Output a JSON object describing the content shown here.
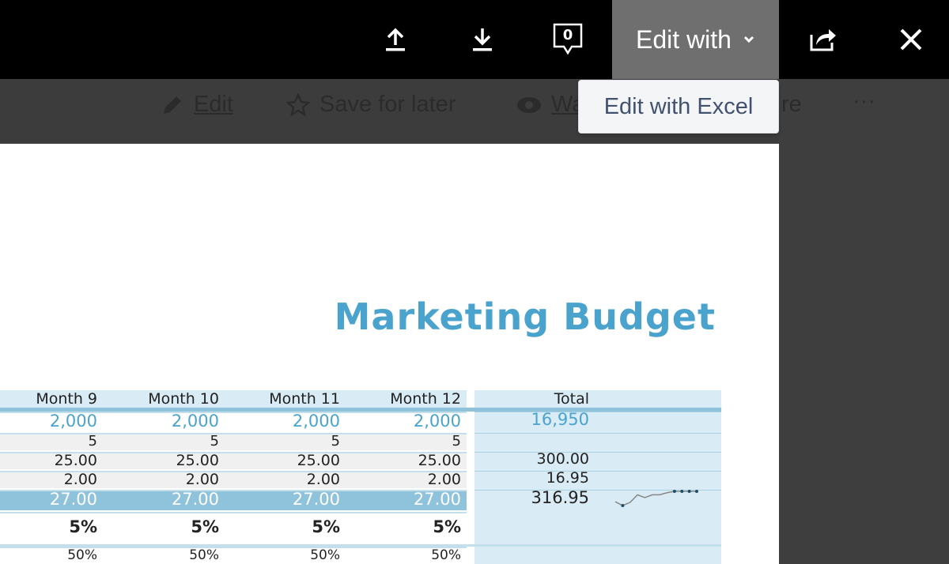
{
  "topbar": {
    "comment_count": "0",
    "edit_with_label": "Edit with",
    "icons": [
      "upload-icon",
      "download-icon",
      "comment-icon",
      "chevron-down-icon",
      "share-icon",
      "close-icon"
    ]
  },
  "toolbar": {
    "edit": "Edit",
    "save_for_later": "Save for later",
    "watch_fragment": "Wa",
    "share_fragment": "re",
    "more": "···"
  },
  "popup": {
    "label": "Edit with Excel"
  },
  "sheet": {
    "title": "Marketing Budget",
    "headers": [
      "Month 9",
      "Month 10",
      "Month 11",
      "Month 12",
      "Total"
    ],
    "rows": [
      {
        "values": [
          "2,000",
          "2,000",
          "2,000",
          "2,000"
        ],
        "total": "16,950"
      },
      {
        "values": [
          "5",
          "5",
          "5",
          "5"
        ],
        "total": ""
      },
      {
        "values": [
          "25.00",
          "25.00",
          "25.00",
          "25.00"
        ],
        "total": "300.00"
      },
      {
        "values": [
          "2.00",
          "2.00",
          "2.00",
          "2.00"
        ],
        "total": "16.95"
      },
      {
        "values": [
          "27.00",
          "27.00",
          "27.00",
          "27.00"
        ],
        "total": "316.95"
      },
      {
        "values": [
          "5%",
          "5%",
          "5%",
          "5%"
        ],
        "total": ""
      },
      {
        "values": [
          "50%",
          "50%",
          "50%",
          "50%"
        ],
        "total": ""
      }
    ],
    "sparkline": [
      25.5,
      24.95,
      25.4,
      26.5,
      26.1,
      26.5,
      26.5,
      26.8,
      27,
      27,
      27,
      27
    ],
    "colors": {
      "accent": "#4aa3cc",
      "highlight": "#8fc3dc",
      "total_bg": "#d9ebf4"
    }
  }
}
